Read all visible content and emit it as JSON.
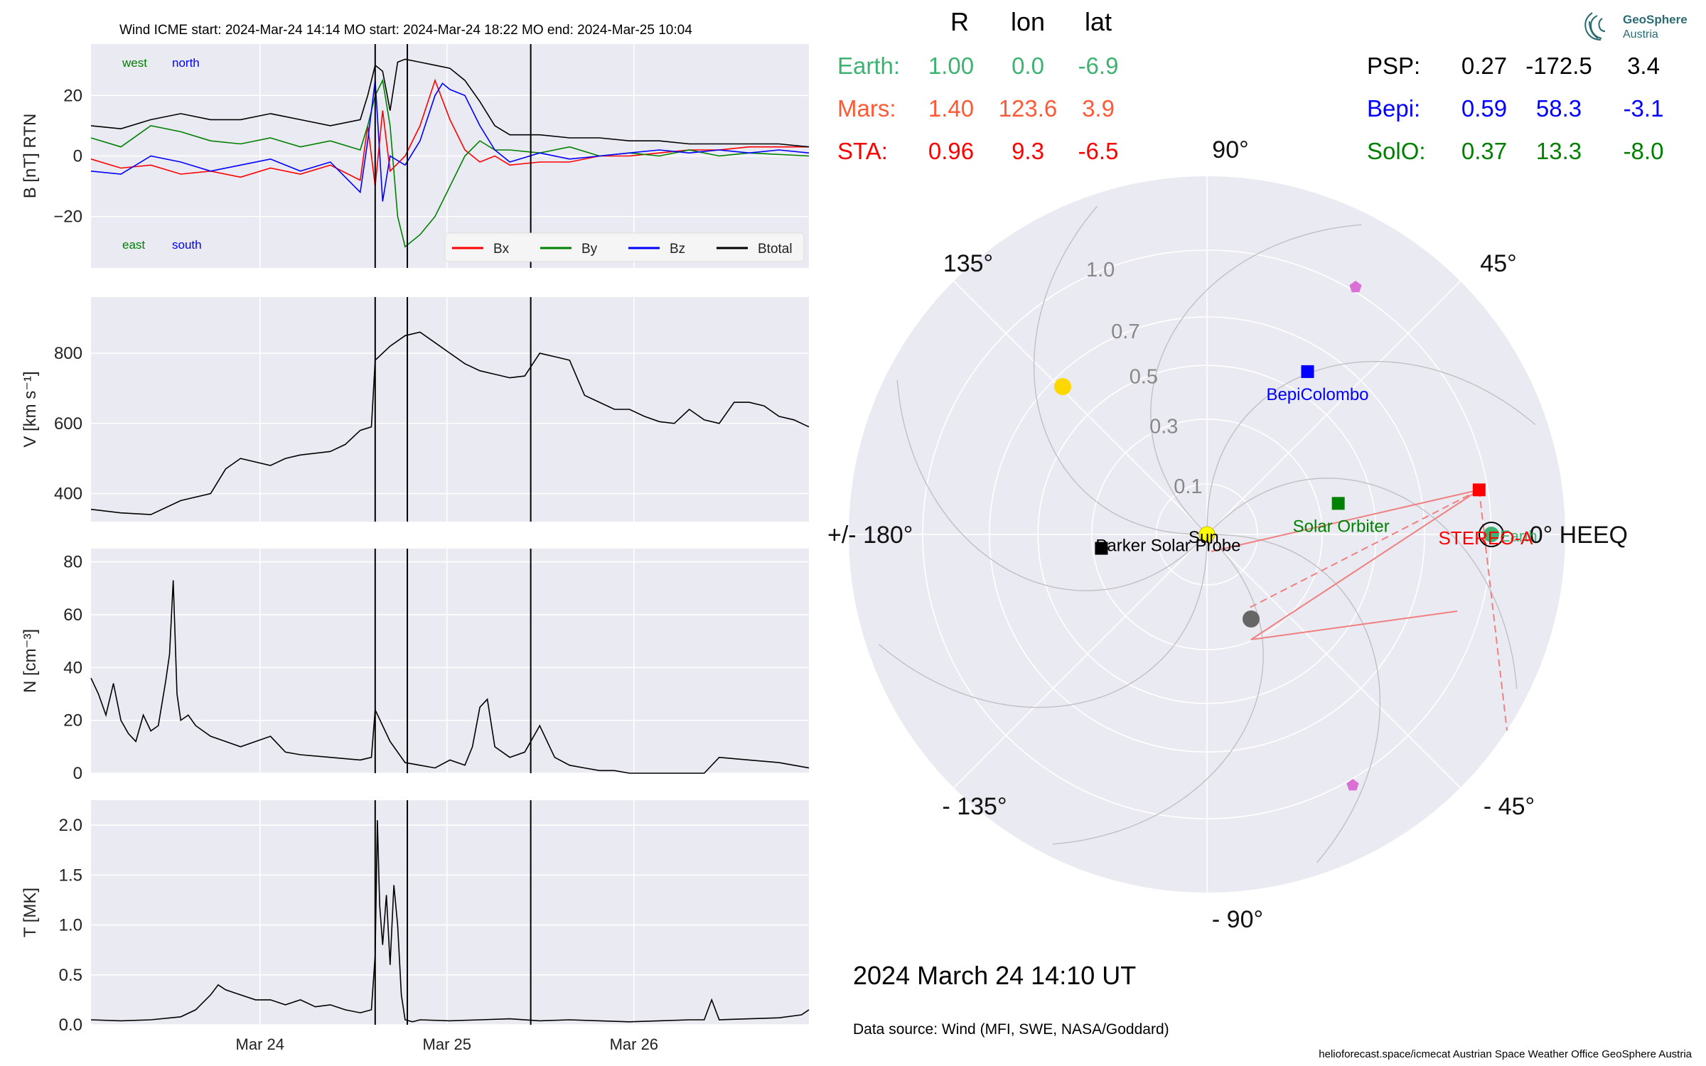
{
  "colors": {
    "panel_bg": "#eaeaf2",
    "grid": "#ffffff",
    "bx": "#ff0000",
    "by": "#008000",
    "bz": "#0000ff",
    "btotal": "#000000",
    "earth": "#3cb371",
    "mars": "#ff5a36",
    "sta": "#ff0000",
    "psp": "#000000",
    "bepi": "#0000ff",
    "solo": "#008000",
    "sun": "#ffff00",
    "cme_line": "#f08080",
    "pentagon": "#da70d6",
    "grey_dot": "#666666"
  },
  "header": {
    "text": "Wind    ICME start: 2024-Mar-24 14:14    MO start: 2024-Mar-24 18:22    MO end: 2024-Mar-25 10:04"
  },
  "chart_data": [
    {
      "type": "line",
      "id": "magnetic_field",
      "ylabel": "B [nT] RTN",
      "ylim": [
        -37,
        37
      ],
      "yticks": [
        20,
        0,
        -20
      ],
      "ytick_labels": [
        "20",
        "0",
        "−20"
      ],
      "xlim": [
        0,
        96
      ],
      "x_unit": "hours since 2024-Mar-23 00:00 (t=0 at axis start)",
      "series": [
        {
          "name": "Bx",
          "x": [
            0,
            4,
            8,
            12,
            16,
            20,
            24,
            28,
            32,
            36,
            37,
            38,
            39,
            40,
            42,
            44,
            46,
            48,
            50,
            52,
            54,
            56,
            60,
            64,
            68,
            72,
            76,
            80,
            84,
            88,
            92,
            96
          ],
          "values": [
            -1,
            -4,
            -3,
            -6,
            -5,
            -7,
            -4,
            -6,
            -3,
            -8,
            10,
            -10,
            15,
            -5,
            0,
            10,
            25,
            12,
            2,
            -2,
            0,
            -3,
            -2,
            -2,
            0,
            0,
            1,
            2,
            2,
            3,
            3,
            3
          ]
        },
        {
          "name": "By",
          "x": [
            0,
            4,
            8,
            12,
            16,
            20,
            24,
            28,
            32,
            36,
            37,
            38,
            39,
            40,
            41,
            42,
            44,
            46,
            48,
            50,
            52,
            54,
            56,
            60,
            64,
            68,
            72,
            76,
            80,
            84,
            88,
            96
          ],
          "values": [
            6,
            3,
            10,
            8,
            5,
            4,
            6,
            3,
            5,
            2,
            10,
            20,
            25,
            10,
            -20,
            -30,
            -26,
            -20,
            -10,
            0,
            5,
            2,
            2,
            1,
            3,
            0,
            1,
            0,
            2,
            0,
            1,
            0
          ]
        },
        {
          "name": "Bz",
          "x": [
            0,
            4,
            8,
            12,
            16,
            20,
            24,
            28,
            32,
            36,
            37,
            38,
            39,
            40,
            42,
            44,
            46,
            47,
            48,
            50,
            52,
            54,
            56,
            60,
            64,
            68,
            72,
            76,
            80,
            84,
            88,
            92,
            96
          ],
          "values": [
            -5,
            -6,
            0,
            -2,
            -5,
            -3,
            -1,
            -5,
            -2,
            -12,
            5,
            25,
            -15,
            0,
            -3,
            5,
            20,
            24,
            22,
            20,
            10,
            2,
            -2,
            1,
            -1,
            0,
            1,
            2,
            1,
            2,
            1,
            2,
            1
          ]
        },
        {
          "name": "Btotal",
          "x": [
            0,
            4,
            8,
            12,
            16,
            20,
            24,
            28,
            32,
            36,
            37,
            38,
            39,
            40,
            41,
            42,
            44,
            46,
            48,
            50,
            52,
            54,
            56,
            60,
            64,
            68,
            72,
            76,
            80,
            84,
            88,
            92,
            96
          ],
          "values": [
            10,
            9,
            12,
            14,
            12,
            12,
            14,
            12,
            10,
            12,
            20,
            30,
            28,
            15,
            31,
            32,
            31,
            30,
            29,
            25,
            18,
            10,
            7,
            7,
            6,
            6,
            5,
            5,
            4,
            4,
            4,
            4,
            3
          ]
        }
      ],
      "annotations": {
        "west": "west",
        "north": "north",
        "east": "east",
        "south": "south"
      },
      "legend": [
        "Bx",
        "By",
        "Bz",
        "Btotal"
      ]
    },
    {
      "type": "line",
      "id": "speed",
      "ylabel": "V [km s⁻¹]",
      "ylim": [
        320,
        960
      ],
      "yticks": [
        400,
        600,
        800
      ],
      "ytick_labels": [
        "400",
        "600",
        "800"
      ],
      "xlim": [
        0,
        96
      ],
      "series": [
        {
          "name": "V",
          "x": [
            0,
            4,
            8,
            12,
            16,
            18,
            20,
            24,
            26,
            28,
            32,
            34,
            36,
            37.5,
            38,
            40,
            42,
            44,
            46,
            48,
            50,
            52,
            54,
            56,
            58,
            60,
            62,
            64,
            66,
            68,
            70,
            72,
            74,
            76,
            78,
            80,
            82,
            84,
            86,
            88,
            90,
            92,
            94,
            96
          ],
          "values": [
            355,
            345,
            340,
            380,
            400,
            470,
            500,
            480,
            500,
            510,
            520,
            540,
            580,
            590,
            780,
            820,
            850,
            860,
            830,
            800,
            770,
            750,
            740,
            730,
            735,
            800,
            790,
            780,
            680,
            660,
            640,
            640,
            620,
            605,
            600,
            640,
            610,
            600,
            660,
            660,
            650,
            620,
            610,
            590
          ]
        }
      ]
    },
    {
      "type": "line",
      "id": "density",
      "ylabel": "N [cm⁻³]",
      "ylim": [
        0,
        85
      ],
      "yticks": [
        0,
        20,
        40,
        60,
        80
      ],
      "ytick_labels": [
        "0",
        "20",
        "40",
        "60",
        "80"
      ],
      "xlim": [
        0,
        96
      ],
      "series": [
        {
          "name": "N",
          "x": [
            0,
            1,
            2,
            3,
            4,
            5,
            6,
            7,
            8,
            9,
            10,
            10.5,
            11,
            11.5,
            12,
            13,
            14,
            16,
            18,
            20,
            24,
            26,
            28,
            32,
            36,
            37.5,
            38,
            39,
            40,
            42,
            44,
            46,
            48,
            50,
            51,
            52,
            53,
            54,
            56,
            58,
            60,
            62,
            64,
            66,
            68,
            70,
            72,
            76,
            80,
            82,
            84,
            88,
            92,
            96
          ],
          "values": [
            36,
            30,
            22,
            34,
            20,
            15,
            12,
            22,
            16,
            18,
            35,
            45,
            73,
            30,
            20,
            22,
            18,
            14,
            12,
            10,
            14,
            8,
            7,
            6,
            5,
            6,
            24,
            18,
            12,
            4,
            3,
            2,
            5,
            3,
            10,
            25,
            28,
            10,
            6,
            8,
            18,
            6,
            3,
            2,
            1,
            1,
            0,
            0,
            0,
            0,
            6,
            5,
            4,
            2
          ]
        }
      ]
    },
    {
      "type": "line",
      "id": "temperature",
      "ylabel": "T [MK]",
      "ylim": [
        0,
        2.25
      ],
      "yticks": [
        0.0,
        0.5,
        1.0,
        1.5,
        2.0
      ],
      "ytick_labels": [
        "0.0",
        "0.5",
        "1.0",
        "1.5",
        "2.0"
      ],
      "xlim": [
        0,
        96
      ],
      "xticks": [
        22.6,
        47.6,
        72.6
      ],
      "xtick_labels": [
        "Mar 24",
        "Mar 25",
        "Mar 26"
      ],
      "series": [
        {
          "name": "T",
          "x": [
            0,
            4,
            8,
            12,
            14,
            16,
            17,
            18,
            20,
            22,
            24,
            26,
            28,
            30,
            32,
            34,
            36,
            37.5,
            38,
            38.3,
            38.6,
            39,
            39.5,
            40,
            40.5,
            41,
            41.5,
            42,
            43,
            44,
            48,
            52,
            56,
            60,
            64,
            68,
            72,
            76,
            80,
            82,
            83,
            84,
            88,
            92,
            95,
            96
          ],
          "values": [
            0.05,
            0.04,
            0.05,
            0.08,
            0.15,
            0.3,
            0.4,
            0.35,
            0.3,
            0.25,
            0.25,
            0.2,
            0.25,
            0.18,
            0.2,
            0.15,
            0.12,
            0.15,
            0.7,
            2.05,
            1.2,
            0.8,
            1.3,
            0.6,
            1.4,
            1.0,
            0.3,
            0.05,
            0.03,
            0.05,
            0.04,
            0.05,
            0.06,
            0.04,
            0.05,
            0.04,
            0.03,
            0.04,
            0.05,
            0.05,
            0.25,
            0.05,
            0.06,
            0.07,
            0.1,
            0.15
          ]
        }
      ],
      "vlines": [
        38,
        42.3,
        58.8
      ]
    },
    {
      "type": "scatter",
      "id": "polar_heeq",
      "angle_labels": {
        "a0": "0° HEEQ",
        "a45": "45°",
        "a90": "90°",
        "a135": "135°",
        "a180": "+/- 180°",
        "am135": "- 135°",
        "am90": "- 90°",
        "am45": "- 45°"
      },
      "radial_ticks": [
        0.1,
        0.3,
        0.5,
        0.7,
        1.0
      ],
      "radial_tick_labels": [
        "0.1",
        "0.3",
        "0.5",
        "0.7",
        "1.0"
      ],
      "bodies": [
        {
          "name": "Sun",
          "label": "Sun",
          "r": 0.0,
          "lon": 0
        },
        {
          "name": "Earth",
          "label": "Earth",
          "r": 1.0,
          "lon": 0.0
        },
        {
          "name": "STEREO-A",
          "label": "STEREO-A",
          "r": 0.96,
          "lon": 9.3
        },
        {
          "name": "BepiColombo",
          "label": "BepiColombo",
          "r": 0.59,
          "lon": 58.3
        },
        {
          "name": "Solar Orbiter",
          "label": "Solar Orbiter",
          "r": 0.37,
          "lon": 13.3
        },
        {
          "name": "Parker Solar Probe",
          "label": "Parker Solar Probe",
          "r": 0.27,
          "lon": -172.5
        },
        {
          "name": "Mars",
          "label": "",
          "r": 1.4,
          "lon": 123.6
        }
      ]
    }
  ],
  "positions_table": {
    "headers": [
      "R",
      "lon",
      "lat"
    ],
    "rows_left": [
      {
        "name": "Earth:",
        "r": "1.00",
        "lon": "0.0",
        "lat": "-6.9"
      },
      {
        "name": "Mars:",
        "r": "1.40",
        "lon": "123.6",
        "lat": "3.9"
      },
      {
        "name": "STA:",
        "r": "0.96",
        "lon": "9.3",
        "lat": "-6.5"
      }
    ],
    "rows_right": [
      {
        "name": "PSP:",
        "r": "0.27",
        "lon": "-172.5",
        "lat": "3.4"
      },
      {
        "name": "Bepi:",
        "r": "0.59",
        "lon": "58.3",
        "lat": "-3.1"
      },
      {
        "name": "SolO:",
        "r": "0.37",
        "lon": "13.3",
        "lat": "-8.0"
      }
    ]
  },
  "logo": {
    "line1": "GeoSphere",
    "line2": "Austria"
  },
  "footer": {
    "datetime": "2024 March 24  14:10 UT",
    "source": "Data source: Wind (MFI, SWE, NASA/Goddard)",
    "credits": "helioforecast.space/icmecat   Austrian Space Weather Office   GeoSphere Austria"
  }
}
